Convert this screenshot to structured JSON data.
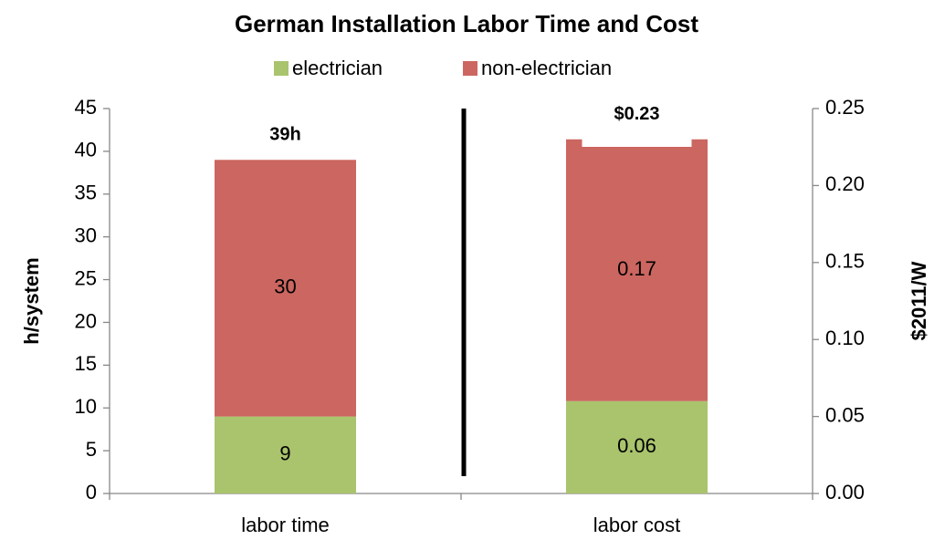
{
  "chart_data": {
    "type": "stacked_bar",
    "title": "German Installation Labor Time and Cost",
    "y_label": "h/system",
    "y2_label": "$2011/W",
    "categories": [
      "labor time",
      "labor cost"
    ],
    "category_axes": [
      "y",
      "y2"
    ],
    "series": [
      {
        "name": "electrician",
        "color": "#a9c46c",
        "values": [
          9,
          0.06
        ]
      },
      {
        "name": "non-electrician",
        "color": "#cc6660",
        "values": [
          30,
          0.17
        ]
      }
    ],
    "totals": [
      39,
      0.23
    ],
    "total_labels": [
      "39h",
      "$0.23"
    ],
    "ylim": [
      0,
      45
    ],
    "yticks": [
      0,
      5,
      10,
      15,
      20,
      25,
      30,
      35,
      40,
      45
    ],
    "y2lim": [
      0,
      0.25
    ],
    "y2ticks": [
      {
        "value": 0,
        "label": "0.00"
      },
      0.05,
      {
        "value": 0.1,
        "label": "0.10"
      },
      0.15,
      {
        "value": 0.2,
        "label": "0.20"
      },
      0.25
    ],
    "legend": "top"
  }
}
